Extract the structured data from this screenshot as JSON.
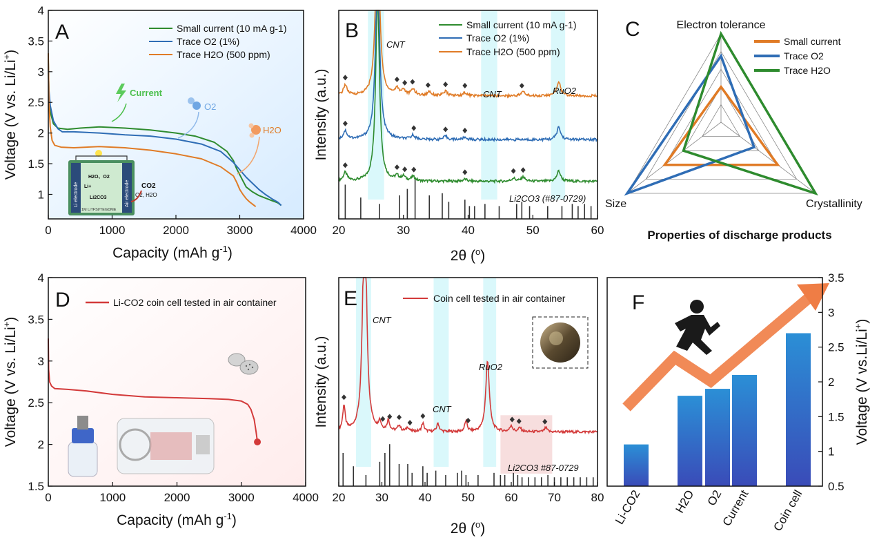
{
  "colors": {
    "green": "#2e8b2e",
    "blue": "#2f6db5",
    "orange": "#e07b26",
    "red": "#d33a3a",
    "cyan_band": "#d6f7fb",
    "pink_band": "#f7dede",
    "bar_top": "#2b8fd6",
    "bar_bottom": "#3a4bb8",
    "arrow": "#ef7d45",
    "bg_gradient": "#dcefff"
  },
  "panels": {
    "A": {
      "label": "A",
      "legend": [
        "Small current (10 mA g-1)",
        "Trace O2 (1%)",
        "Trace H2O (500 ppm)"
      ],
      "annotations": {
        "current": "Current",
        "o2": "O2",
        "h2o": "H2O"
      },
      "schematic": {
        "left": "Li electrode",
        "right": "Air electrode",
        "liplus": "Li+",
        "h2o_o2": "H2O、O2",
        "li2co3": "Li2CO3",
        "co2": "CO2",
        "o2h2o": "O2, H2O",
        "electrolyte": "1M LiTFSI/TEGDME"
      }
    },
    "B": {
      "label": "B",
      "legend": [
        "Small current (10 mA g-1)",
        "Trace O2 (1%)",
        "Trace H2O (500 ppm)"
      ],
      "annotations": {
        "cnt1": "CNT",
        "cnt2": "CNT",
        "ruo2": "RuO2",
        "ref": "Li2CO3 (#87-0729)"
      }
    },
    "C": {
      "label": "C",
      "axes": [
        "Electron tolerance",
        "Crystallinity",
        "Size"
      ],
      "legend": [
        "Small current",
        "Trace O2",
        "Trace H2O"
      ],
      "caption": "Properties of discharge products"
    },
    "D": {
      "label": "D",
      "legend": [
        "Li-CO2 coin cell tested in air container"
      ]
    },
    "E": {
      "label": "E",
      "legend": [
        "Coin cell  tested in air container"
      ],
      "annotations": {
        "cnt1": "CNT",
        "cnt2": "CNT",
        "ruo2": "RuO2",
        "ref": "Li2CO3 #87-0729"
      }
    },
    "F": {
      "label": "F"
    }
  },
  "chart_data": [
    {
      "panel": "A",
      "type": "line",
      "xlabel": "Capacity (mAh g-1)",
      "ylabel": "Voltage (V vs. Li/Li+)",
      "xlim": [
        0,
        4000
      ],
      "ylim": [
        0.6,
        4.0
      ],
      "xticks": [
        0,
        1000,
        2000,
        3000,
        4000
      ],
      "yticks": [
        1.0,
        1.5,
        2.0,
        2.5,
        3.0,
        3.5,
        4.0
      ],
      "series": [
        {
          "name": "Small current (10 mA g-1)",
          "color": "green",
          "x": [
            0,
            10,
            30,
            80,
            150,
            300,
            500,
            800,
            1200,
            1600,
            2000,
            2300,
            2600,
            2800,
            2900,
            2950,
            3000,
            3050,
            3100,
            3200,
            3300,
            3400,
            3500,
            3550,
            3600,
            3650
          ],
          "y": [
            3.2,
            2.6,
            2.35,
            2.15,
            2.08,
            2.06,
            2.08,
            2.1,
            2.08,
            2.05,
            2.0,
            1.95,
            1.85,
            1.7,
            1.55,
            1.42,
            1.32,
            1.22,
            1.12,
            1.04,
            0.98,
            0.94,
            0.9,
            0.88,
            0.86,
            0.82
          ]
        },
        {
          "name": "Trace O2 (1%)",
          "color": "blue",
          "x": [
            0,
            10,
            30,
            80,
            150,
            220,
            400,
            800,
            1200,
            1600,
            2000,
            2400,
            2700,
            2900,
            3000,
            3100,
            3200,
            3300,
            3400,
            3500,
            3600,
            3650
          ],
          "y": [
            3.15,
            2.7,
            2.45,
            2.2,
            2.07,
            2.02,
            2.02,
            2.0,
            1.97,
            1.95,
            1.9,
            1.82,
            1.7,
            1.52,
            1.4,
            1.28,
            1.18,
            1.08,
            1.0,
            0.93,
            0.87,
            0.82
          ]
        },
        {
          "name": "Trace H2O (500 ppm)",
          "color": "orange",
          "x": [
            0,
            10,
            30,
            60,
            100,
            200,
            400,
            800,
            1200,
            1600,
            2000,
            2400,
            2700,
            2900,
            2950,
            3000,
            3050,
            3100,
            3150,
            3200,
            3250
          ],
          "y": [
            3.3,
            2.5,
            2.1,
            1.88,
            1.8,
            1.77,
            1.76,
            1.78,
            1.76,
            1.72,
            1.66,
            1.58,
            1.45,
            1.3,
            1.2,
            1.08,
            1.0,
            0.93,
            0.88,
            0.84,
            0.8
          ]
        }
      ]
    },
    {
      "panel": "B",
      "type": "line",
      "xlabel": "2θ (o)",
      "ylabel": "Intensity (a.u.)",
      "xlim": [
        20,
        60
      ],
      "xticks": [
        20,
        30,
        40,
        50,
        60
      ],
      "bands": [
        [
          24.5,
          27
        ],
        [
          42,
          44.5
        ],
        [
          52.8,
          55
        ]
      ],
      "series": [
        {
          "name": "Small current (10 mA g-1)",
          "color": "green",
          "baseline": 0.18,
          "peaks": [
            [
              21.0,
              0.04
            ],
            [
              26.0,
              0.9
            ],
            [
              29.0,
              0.02
            ],
            [
              30.0,
              0.02
            ],
            [
              31.5,
              0.02
            ],
            [
              39.5,
              0.01
            ],
            [
              47.0,
              0.015
            ],
            [
              48.5,
              0.02
            ],
            [
              54.0,
              0.05
            ]
          ],
          "markers": [
            21.0,
            29.0,
            30.2,
            31.6,
            39.5,
            47.0,
            48.5
          ]
        },
        {
          "name": "Trace O2 (1%)",
          "color": "blue",
          "baseline": 0.38,
          "peaks": [
            [
              21.0,
              0.04
            ],
            [
              26.0,
              0.9
            ],
            [
              31.5,
              0.02
            ],
            [
              36.5,
              0.015
            ],
            [
              39.5,
              0.01
            ],
            [
              54.0,
              0.06
            ]
          ],
          "markers": [
            21.0,
            31.6,
            36.5,
            39.5
          ]
        },
        {
          "name": "Trace H2O (500 ppm)",
          "color": "orange",
          "baseline": 0.59,
          "peaks": [
            [
              21.0,
              0.05
            ],
            [
              26.0,
              0.9
            ],
            [
              29.0,
              0.03
            ],
            [
              30.0,
              0.025
            ],
            [
              31.5,
              0.03
            ],
            [
              34.0,
              0.02
            ],
            [
              36.5,
              0.02
            ],
            [
              39.5,
              0.015
            ],
            [
              48.5,
              0.02
            ],
            [
              54.0,
              0.07
            ]
          ],
          "markers": [
            21.0,
            29.0,
            30.2,
            31.4,
            33.8,
            36.5,
            39.5,
            48.3
          ]
        }
      ],
      "reference_lines": [
        [
          21.0,
          0.8
        ],
        [
          23.4,
          0.5
        ],
        [
          26.3,
          0.35
        ],
        [
          29.4,
          0.55
        ],
        [
          30.6,
          0.7
        ],
        [
          31.8,
          0.95
        ],
        [
          34.0,
          0.55
        ],
        [
          36.0,
          0.6
        ],
        [
          37.0,
          0.4
        ],
        [
          39.5,
          0.45
        ],
        [
          40.2,
          0.3
        ],
        [
          41.0,
          0.3
        ],
        [
          42.6,
          0.35
        ],
        [
          44.8,
          0.3
        ],
        [
          47.5,
          0.35
        ],
        [
          48.3,
          0.4
        ],
        [
          49.5,
          0.3
        ],
        [
          52.3,
          0.3
        ],
        [
          54.5,
          0.3
        ],
        [
          56.1,
          0.35
        ],
        [
          57.0,
          0.3
        ],
        [
          58.0,
          0.35
        ],
        [
          59.0,
          0.3
        ]
      ]
    },
    {
      "panel": "C",
      "type": "radar",
      "axes": [
        "Electron tolerance",
        "Crystallinity",
        "Size"
      ],
      "rings": 5,
      "series": [
        {
          "name": "Small current",
          "color": "orange",
          "values": [
            0.4,
            0.6,
            0.6
          ]
        },
        {
          "name": "Trace O2",
          "color": "blue",
          "values": [
            0.75,
            0.35,
            1.0
          ]
        },
        {
          "name": "Trace H2O",
          "color": "green",
          "values": [
            1.0,
            1.0,
            0.4
          ]
        }
      ]
    },
    {
      "panel": "D",
      "type": "line",
      "xlabel": "Capacity (mAh g-1)",
      "ylabel": "Voltage (V vs. Li/Li+)",
      "xlim": [
        0,
        4000
      ],
      "ylim": [
        1.5,
        4.0
      ],
      "xticks": [
        0,
        1000,
        2000,
        3000,
        4000
      ],
      "yticks": [
        1.5,
        2.0,
        2.5,
        3.0,
        3.5,
        4.0
      ],
      "series": [
        {
          "name": "Li-CO2 coin cell tested in air container",
          "color": "red",
          "x": [
            0,
            5,
            20,
            50,
            100,
            300,
            600,
            1000,
            1500,
            2000,
            2500,
            2800,
            3000,
            3100,
            3150,
            3200,
            3230,
            3250
          ],
          "y": [
            3.27,
            2.9,
            2.75,
            2.7,
            2.67,
            2.66,
            2.64,
            2.6,
            2.57,
            2.56,
            2.55,
            2.54,
            2.52,
            2.48,
            2.42,
            2.3,
            2.15,
            2.03
          ]
        }
      ]
    },
    {
      "panel": "E",
      "type": "line",
      "xlabel": "2θ (o)",
      "ylabel": "Intensity (a.u.)",
      "xlim": [
        20,
        80
      ],
      "xticks": [
        20,
        30,
        40,
        50,
        60,
        70,
        80
      ],
      "bands": [
        [
          24,
          27.5
        ],
        [
          42,
          45.5
        ],
        [
          53.5,
          56.5
        ]
      ],
      "pink_band": [
        57.5,
        69.5
      ],
      "series": [
        {
          "name": "Coin cell  tested in air container",
          "color": "red",
          "baseline": 0.26,
          "peaks": [
            [
              21.2,
              0.12
            ],
            [
              26.0,
              1.2
            ],
            [
              29.5,
              0.04
            ],
            [
              31.5,
              0.05
            ],
            [
              34.0,
              0.03
            ],
            [
              36.0,
              0.02
            ],
            [
              39.5,
              0.04
            ],
            [
              43.0,
              0.04
            ],
            [
              49.5,
              0.05
            ],
            [
              54.5,
              0.34
            ],
            [
              60.0,
              0.03
            ],
            [
              62.0,
              0.02
            ],
            [
              68.0,
              0.02
            ]
          ],
          "markers": [
            21.2,
            30.2,
            31.8,
            34.0,
            36.5,
            39.5,
            50.0,
            60.2,
            61.8,
            67.8
          ]
        }
      ],
      "reference_lines": [
        [
          21.0,
          0.75
        ],
        [
          23.4,
          0.45
        ],
        [
          26.3,
          0.25
        ],
        [
          29.5,
          0.55
        ],
        [
          30.7,
          0.75
        ],
        [
          31.8,
          0.95
        ],
        [
          34.0,
          0.5
        ],
        [
          36.0,
          0.5
        ],
        [
          37.0,
          0.3
        ],
        [
          39.5,
          0.45
        ],
        [
          40.5,
          0.3
        ],
        [
          42.5,
          0.35
        ],
        [
          44.8,
          0.25
        ],
        [
          47.5,
          0.3
        ],
        [
          48.5,
          0.35
        ],
        [
          49.5,
          0.25
        ],
        [
          52.3,
          0.25
        ],
        [
          56.0,
          0.3
        ],
        [
          57.5,
          0.25
        ],
        [
          58.5,
          0.25
        ],
        [
          60.5,
          0.3
        ],
        [
          61.5,
          0.25
        ],
        [
          62.5,
          0.2
        ],
        [
          64.0,
          0.2
        ],
        [
          65.5,
          0.2
        ],
        [
          67.0,
          0.2
        ],
        [
          68.5,
          0.25
        ],
        [
          70.0,
          0.2
        ],
        [
          71.5,
          0.2
        ],
        [
          73.0,
          0.2
        ],
        [
          74.5,
          0.2
        ],
        [
          76.0,
          0.2
        ],
        [
          77.5,
          0.2
        ],
        [
          79.0,
          0.2
        ]
      ]
    },
    {
      "panel": "F",
      "type": "bar",
      "ylabel": "Voltage (V vs.Li/Li+)",
      "ylim": [
        0.5,
        3.5
      ],
      "yticks": [
        0.5,
        1.0,
        1.5,
        2.0,
        2.5,
        3.0,
        3.5
      ],
      "categories": [
        "Li-CO2",
        "H2O",
        "O2",
        "Current",
        "Coin cell"
      ],
      "values": [
        1.1,
        1.8,
        1.9,
        2.1,
        2.7
      ]
    }
  ]
}
